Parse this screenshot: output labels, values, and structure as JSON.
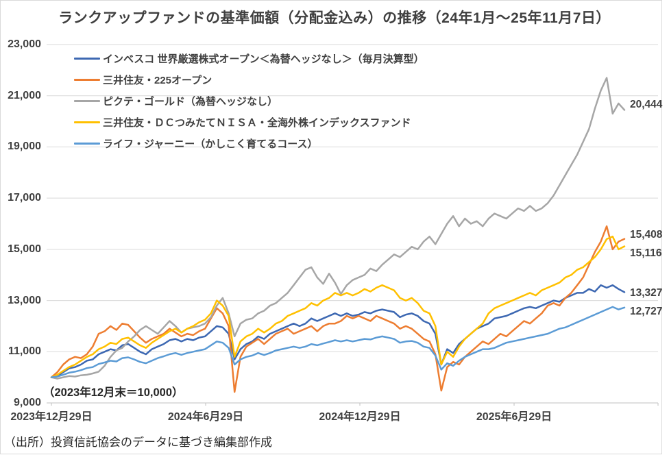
{
  "title": "ランクアップファンドの基準価額（分配金込み）の推移（24年1月～25年11月7日）",
  "annotation": "（2023年12月末＝10,000）",
  "source_note": "（出所）投資信託協会のデータに基づき編集部作成",
  "chart_data": {
    "type": "line",
    "title": "ランクアップファンドの基準価額（分配金込み）の推移（24年1月～25年11月7日）",
    "x_axis": {
      "tick_labels": [
        "2023年12月29日",
        "2024年6月29日",
        "2024年12月29日",
        "2025年6月29日"
      ],
      "range_start": "2023年12月29日",
      "range_end": "2025年11月7日",
      "sampling": "weekly"
    },
    "y_axis": {
      "tick_labels": [
        "23,000",
        "21,000",
        "19,000",
        "17,000",
        "15,000",
        "13,000",
        "11,000",
        "9,000"
      ],
      "min": 9000,
      "max": 23000,
      "tick_step": 2000
    },
    "grid": true,
    "legend_position": "top-left",
    "baseline_note": "2023年12月末＝10,000",
    "series": [
      {
        "name": "インベスコ 世界厳選株式オープン＜為替ヘッジなし＞（毎月決算型）",
        "color": "#3D68B2",
        "end_label": "13,327",
        "end_value": 13327,
        "values": [
          10000,
          10050,
          10200,
          10350,
          10400,
          10500,
          10650,
          10700,
          10900,
          11000,
          11100,
          11050,
          11250,
          11300,
          11150,
          11000,
          10900,
          11100,
          11200,
          11300,
          11450,
          11500,
          11400,
          11500,
          11450,
          11550,
          11600,
          11800,
          12000,
          11950,
          11700,
          10700,
          11100,
          11300,
          11400,
          11600,
          11500,
          11700,
          11800,
          11900,
          12000,
          12100,
          12000,
          12100,
          12300,
          12200,
          12300,
          12400,
          12500,
          12400,
          12500,
          12400,
          12450,
          12550,
          12500,
          12600,
          12650,
          12600,
          12550,
          12350,
          12450,
          12500,
          12400,
          12200,
          12100,
          11700,
          10500,
          11100,
          10950,
          11300,
          11500,
          11700,
          11900,
          12000,
          12100,
          12300,
          12350,
          12400,
          12500,
          12600,
          12700,
          12750,
          12700,
          12800,
          12900,
          13000,
          12950,
          13100,
          13200,
          13300,
          13300,
          13450,
          13350,
          13600,
          13500,
          13600,
          13450,
          13327
        ]
      },
      {
        "name": "三井住友・225オープン",
        "color": "#ED7D31",
        "end_label": "15,408",
        "end_value": 15408,
        "values": [
          10000,
          10200,
          10500,
          10700,
          10800,
          10750,
          10900,
          11200,
          11700,
          11800,
          12000,
          11850,
          12100,
          12050,
          11800,
          11550,
          11350,
          11500,
          11600,
          11700,
          11900,
          11750,
          11600,
          11700,
          11650,
          11800,
          11900,
          12300,
          12700,
          12500,
          12000,
          9430,
          10800,
          11200,
          11350,
          11500,
          11300,
          11500,
          11700,
          11800,
          11900,
          11700,
          11800,
          11900,
          12000,
          11800,
          12000,
          12100,
          12100,
          12200,
          12400,
          12300,
          12400,
          12300,
          12200,
          12400,
          12300,
          12200,
          12100,
          11900,
          12000,
          11900,
          11700,
          11500,
          11400,
          10900,
          9480,
          10400,
          10600,
          10500,
          10800,
          11000,
          11200,
          11400,
          11300,
          11500,
          11700,
          11600,
          11800,
          12000,
          12200,
          12100,
          12300,
          12500,
          12800,
          12900,
          12800,
          13100,
          13300,
          13600,
          13900,
          14400,
          14900,
          15300,
          15900,
          15000,
          15300,
          15408
        ]
      },
      {
        "name": "ピクテ・ゴールド（為替ヘッジなし）",
        "color": "#A6A6A6",
        "end_label": "20,444",
        "end_value": 20444,
        "values": [
          10000,
          9950,
          10000,
          10050,
          10030,
          10080,
          10100,
          10150,
          10220,
          10450,
          10800,
          11050,
          11150,
          11400,
          11600,
          11850,
          12000,
          11850,
          11700,
          11950,
          12200,
          12000,
          11750,
          11900,
          11950,
          12000,
          12100,
          12350,
          12800,
          13100,
          12500,
          11600,
          12100,
          12250,
          12300,
          12500,
          12600,
          12800,
          12900,
          13100,
          13300,
          13600,
          13900,
          14200,
          14300,
          13900,
          13650,
          14050,
          13700,
          13250,
          13600,
          13800,
          13900,
          14000,
          14250,
          14150,
          14400,
          14600,
          14800,
          14700,
          14900,
          15100,
          15000,
          15300,
          15500,
          15200,
          15600,
          16000,
          16300,
          15900,
          16200,
          16000,
          16100,
          15900,
          16200,
          16400,
          16300,
          16200,
          16400,
          16600,
          16500,
          16700,
          16500,
          16600,
          16800,
          17100,
          17500,
          17900,
          18300,
          18700,
          19200,
          19700,
          20500,
          21200,
          21700,
          20300,
          20700,
          20444
        ]
      },
      {
        "name": "三井住友・ＤＣつみたてＮＩＳＡ・全海外株インデックスファンド",
        "color": "#FFC000",
        "end_label": "15,116",
        "end_value": 15116,
        "values": [
          10000,
          10100,
          10250,
          10400,
          10500,
          10650,
          10800,
          10900,
          11100,
          11200,
          11350,
          11300,
          11500,
          11550,
          11400,
          11250,
          11150,
          11350,
          11500,
          11650,
          11800,
          11900,
          11750,
          11900,
          12000,
          12150,
          12250,
          12500,
          13000,
          12800,
          12400,
          10800,
          11400,
          11600,
          11700,
          11900,
          11750,
          11900,
          12100,
          12200,
          12400,
          12500,
          12600,
          12700,
          12900,
          12800,
          13000,
          13100,
          13300,
          13200,
          13300,
          13200,
          13300,
          13450,
          13350,
          13500,
          13600,
          13500,
          13400,
          13100,
          13000,
          13100,
          12900,
          12600,
          12500,
          12000,
          10500,
          11000,
          10800,
          11200,
          11500,
          11700,
          11900,
          12100,
          12500,
          12700,
          12800,
          12900,
          13000,
          13100,
          13200,
          13300,
          13200,
          13400,
          13500,
          13600,
          13700,
          13900,
          14000,
          14200,
          14300,
          14500,
          14700,
          15000,
          15400,
          15500,
          15000,
          15116
        ]
      },
      {
        "name": "ライフ・ジャーニー（かしこく育てるコース）",
        "color": "#5B9BD5",
        "end_label": "12,727",
        "end_value": 12727,
        "values": [
          10000,
          10030,
          10100,
          10180,
          10220,
          10280,
          10360,
          10400,
          10520,
          10580,
          10650,
          10620,
          10750,
          10780,
          10700,
          10600,
          10550,
          10650,
          10750,
          10820,
          10900,
          10950,
          10880,
          10950,
          11000,
          11050,
          11100,
          11250,
          11400,
          11350,
          11150,
          10500,
          10700,
          10800,
          10850,
          10950,
          10870,
          10950,
          11050,
          11100,
          11150,
          11200,
          11150,
          11200,
          11300,
          11250,
          11320,
          11380,
          11450,
          11400,
          11450,
          11400,
          11450,
          11500,
          11480,
          11550,
          11600,
          11550,
          11500,
          11350,
          11400,
          11420,
          11350,
          11200,
          11150,
          10850,
          10300,
          10550,
          10450,
          10650,
          10800,
          10900,
          11000,
          11100,
          11100,
          11150,
          11250,
          11350,
          11400,
          11450,
          11500,
          11550,
          11600,
          11650,
          11700,
          11800,
          11900,
          11950,
          12050,
          12150,
          12250,
          12350,
          12450,
          12550,
          12650,
          12750,
          12650,
          12727
        ]
      }
    ]
  }
}
